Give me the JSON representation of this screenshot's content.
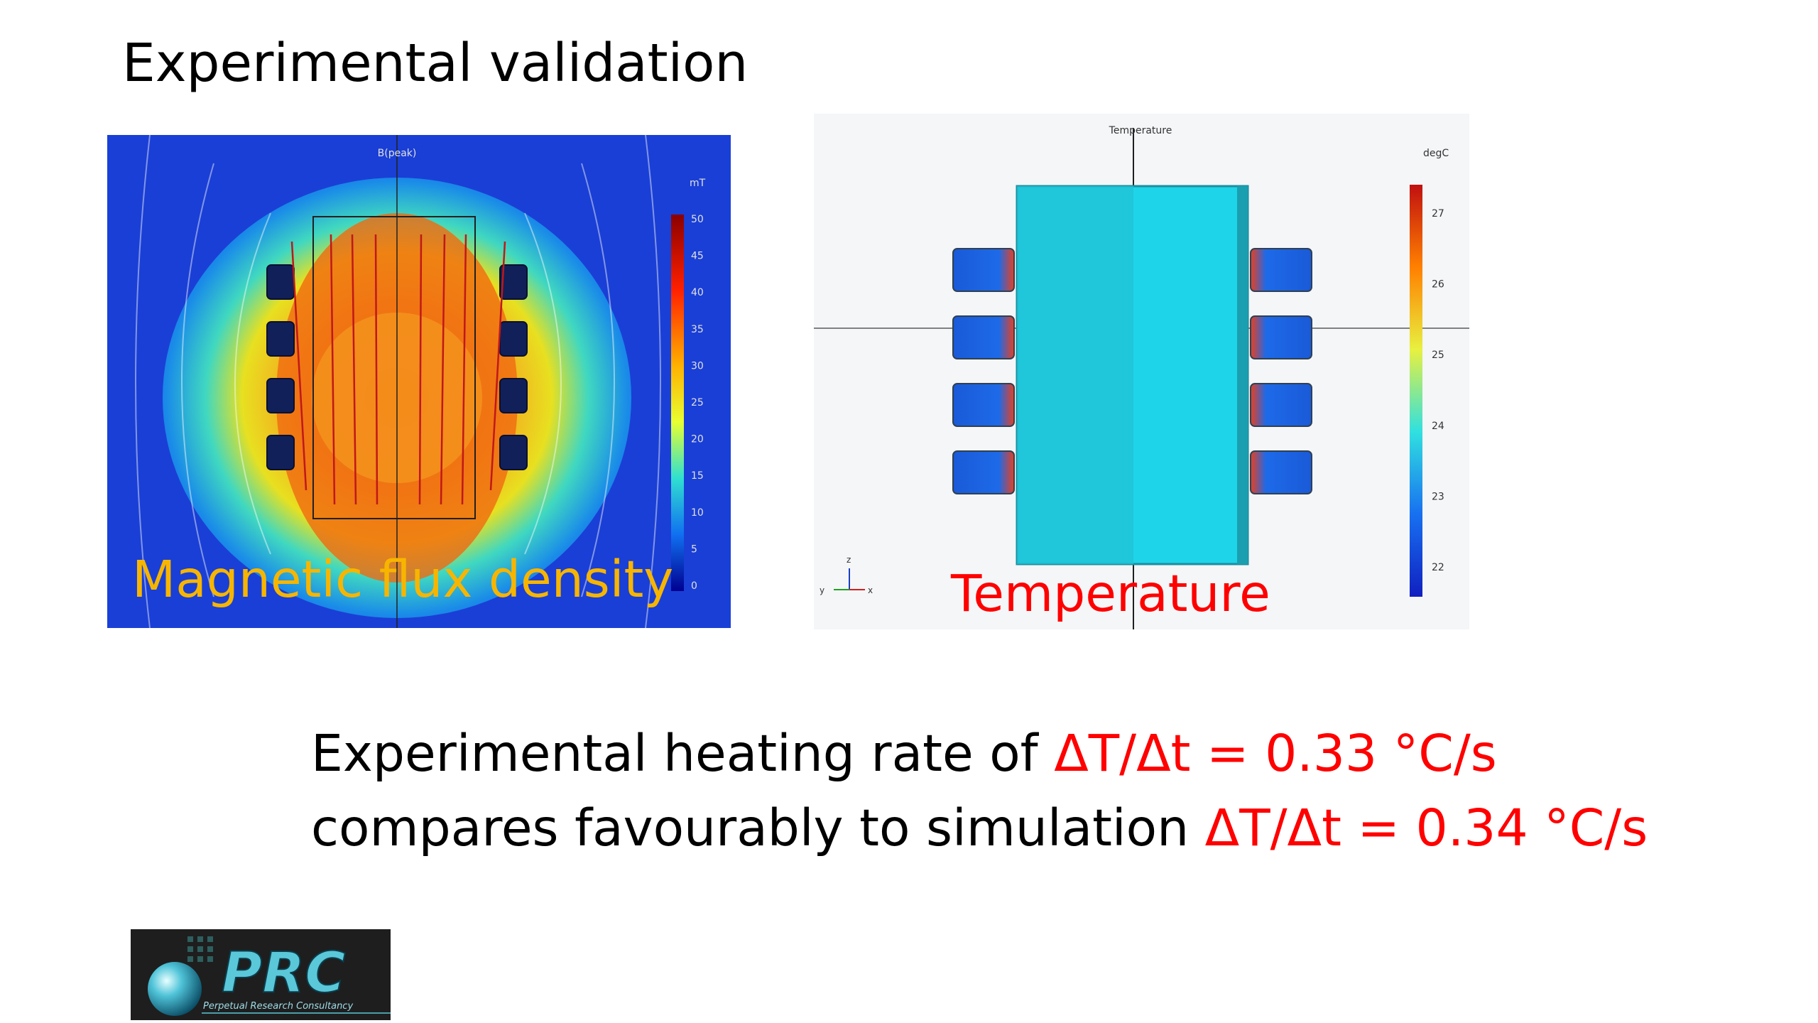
{
  "slide": {
    "title": "Experimental validation"
  },
  "flux_plot": {
    "plot_title": "B(peak)",
    "unit": "mT",
    "colorbar_ticks": [
      "50",
      "45",
      "40",
      "35",
      "30",
      "25",
      "20",
      "15",
      "10",
      "5",
      "0"
    ],
    "caption": "Magnetic flux density"
  },
  "temperature_plot": {
    "plot_title": "Temperature",
    "unit": "degC",
    "colorbar_ticks": [
      "27",
      "26",
      "25",
      "24",
      "23",
      "22"
    ],
    "axis_z": "z",
    "axis_y": "y",
    "axis_x": "x",
    "caption": "Temperature"
  },
  "results": {
    "line1_text": "Experimental heating rate of ",
    "line1_value": "ΔT/Δt = 0.33 °C/s",
    "line2_text": "compares favourably to simulation ",
    "line2_value": "ΔT/Δt = 0.34 °C/s"
  },
  "logo": {
    "name": "PRC",
    "tagline": "Perpetual Research Consultancy"
  },
  "colors": {
    "accent_red": "#ff0000",
    "flux_caption": "#f7b500",
    "flux_background": "#1a3fd6",
    "temperature_body": "#1ed4e8"
  }
}
